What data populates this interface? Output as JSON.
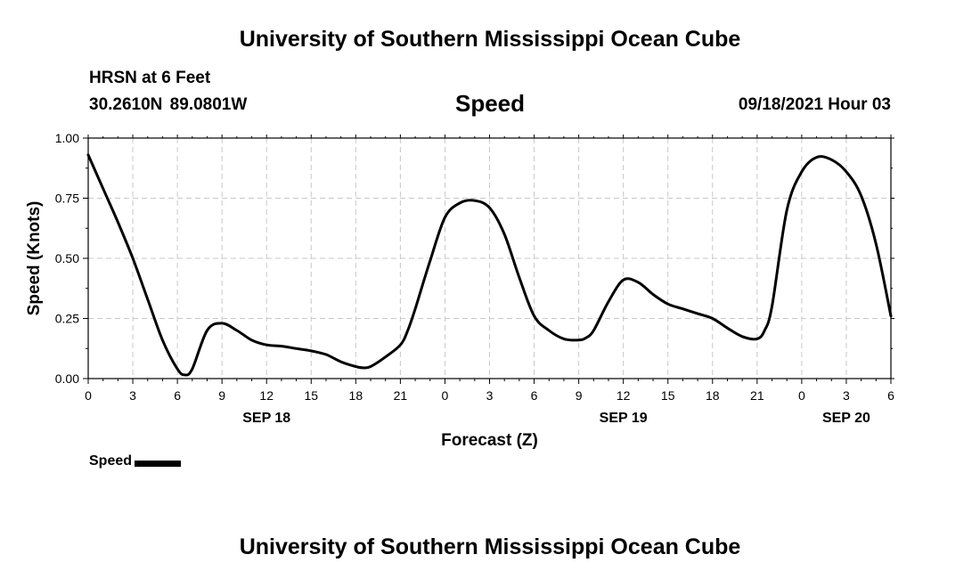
{
  "header": {
    "title": "University of Southern Mississippi Ocean Cube",
    "station": "HRSN at 6 Feet",
    "coordinates": "30.2610N  89.0801W",
    "chart_title": "Speed",
    "datetime": "09/18/2021 Hour 03"
  },
  "footer": {
    "title": "University of Southern Mississippi Ocean Cube"
  },
  "legend": {
    "label": "Speed",
    "color": "#000000"
  },
  "chart_data": {
    "type": "line",
    "title": "Speed",
    "xlabel": "Forecast (Z)",
    "ylabel": "Speed (Knots)",
    "xlim": [
      0,
      54
    ],
    "ylim": [
      0,
      1.0
    ],
    "grid": true,
    "legend_position": "bottom-left",
    "x_ticks": [
      0,
      3,
      6,
      9,
      12,
      15,
      18,
      21,
      24,
      27,
      30,
      33,
      36,
      39,
      42,
      45,
      48,
      51,
      54
    ],
    "x_tick_labels": [
      "0",
      "3",
      "6",
      "9",
      "12",
      "15",
      "18",
      "21",
      "0",
      "3",
      "6",
      "9",
      "12",
      "15",
      "18",
      "21",
      "0",
      "3",
      "6"
    ],
    "y_ticks": [
      0,
      0.25,
      0.5,
      0.75,
      1.0
    ],
    "y_tick_labels": [
      "0.00",
      "0.25",
      "0.50",
      "0.75",
      "1.00"
    ],
    "date_labels": [
      {
        "x": 12,
        "label": "SEP 18"
      },
      {
        "x": 36,
        "label": "SEP 19"
      },
      {
        "x": 51,
        "label": "SEP 20"
      }
    ],
    "series": [
      {
        "name": "Speed",
        "color": "#000000",
        "x": [
          0,
          1,
          2,
          3,
          4,
          5,
          6,
          6.5,
          7,
          8,
          9,
          10,
          11,
          12,
          13,
          14,
          15,
          16,
          17,
          18,
          18.5,
          19,
          20,
          21,
          21.5,
          22,
          23,
          24,
          25,
          26,
          27,
          28,
          29,
          30,
          31,
          32,
          33,
          33.5,
          34,
          35,
          36,
          37,
          38,
          39,
          40,
          41,
          42,
          43,
          44,
          45,
          45.5,
          46,
          47,
          48,
          49,
          50,
          51,
          52,
          53,
          54
        ],
        "y": [
          0.93,
          0.79,
          0.65,
          0.5,
          0.33,
          0.16,
          0.04,
          0.015,
          0.04,
          0.2,
          0.23,
          0.2,
          0.16,
          0.14,
          0.135,
          0.125,
          0.115,
          0.1,
          0.07,
          0.05,
          0.045,
          0.05,
          0.09,
          0.14,
          0.2,
          0.29,
          0.49,
          0.67,
          0.73,
          0.74,
          0.71,
          0.6,
          0.42,
          0.26,
          0.2,
          0.165,
          0.16,
          0.17,
          0.2,
          0.32,
          0.41,
          0.4,
          0.35,
          0.31,
          0.29,
          0.27,
          0.25,
          0.21,
          0.175,
          0.165,
          0.2,
          0.3,
          0.7,
          0.86,
          0.92,
          0.91,
          0.86,
          0.76,
          0.56,
          0.26
        ]
      }
    ]
  }
}
